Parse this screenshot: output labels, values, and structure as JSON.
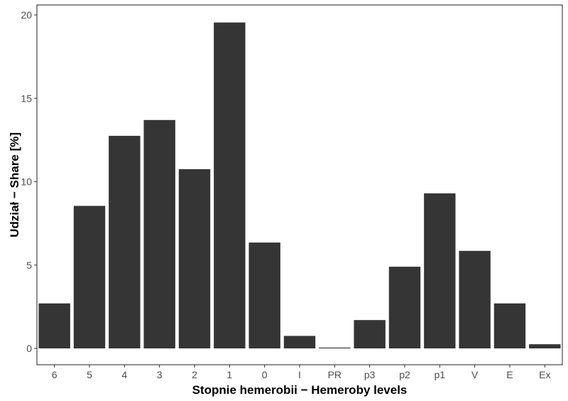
{
  "chart_data": {
    "type": "bar",
    "title": "",
    "xlabel": "Stopnie hemerobii − Hemeroby levels",
    "ylabel": "Udział − Share [%]",
    "categories": [
      "6",
      "5",
      "4",
      "3",
      "2",
      "1",
      "0",
      "I",
      "PR",
      "p3",
      "p2",
      "p1",
      "V",
      "E",
      "Ex"
    ],
    "values": [
      2.7,
      8.55,
      12.75,
      13.7,
      10.75,
      19.55,
      6.35,
      0.75,
      0.05,
      1.7,
      4.9,
      9.3,
      5.85,
      2.7,
      0.25
    ],
    "ylim": [
      -0.98,
      20.6
    ],
    "yticks": [
      0,
      5,
      10,
      15,
      20
    ],
    "grid": false,
    "legend": "none",
    "bar_color": "#353535",
    "frame_color": "#333333"
  }
}
